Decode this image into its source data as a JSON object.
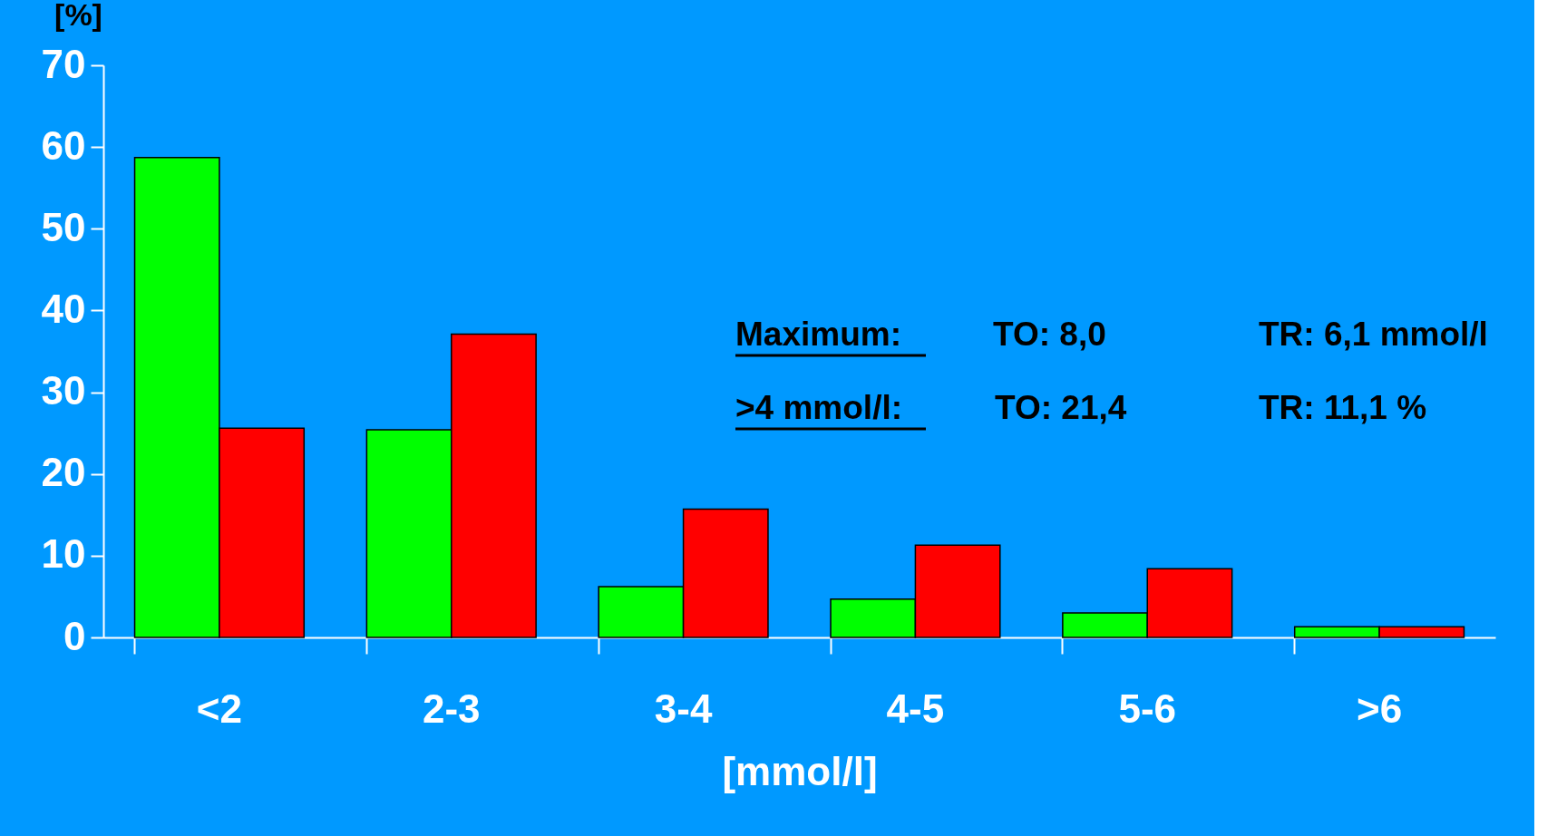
{
  "chart_data": {
    "type": "bar",
    "xlabel": "[mmol/l]",
    "ylabel": "[%]",
    "categories": [
      "<2",
      "2-3",
      "3-4",
      "4-5",
      "5-6",
      ">6"
    ],
    "series": [
      {
        "color": "#00ff00",
        "values": [
          58.7,
          25.4,
          6.2,
          4.7,
          3.0,
          1.3
        ]
      },
      {
        "color": "#ff0000",
        "values": [
          25.6,
          37.1,
          15.7,
          11.3,
          8.4,
          1.3
        ]
      }
    ],
    "ylim": [
      0,
      70
    ],
    "yticks": [
      0,
      10,
      20,
      30,
      40,
      50,
      60,
      70
    ],
    "grid": false,
    "legend": false,
    "annotations": [
      "Maximum:",
      "TO:    8,0",
      "TR:   6,1 mmol/l",
      ">4 mmol/l:",
      "TO: 21,4",
      "TR: 11,1 %"
    ]
  }
}
